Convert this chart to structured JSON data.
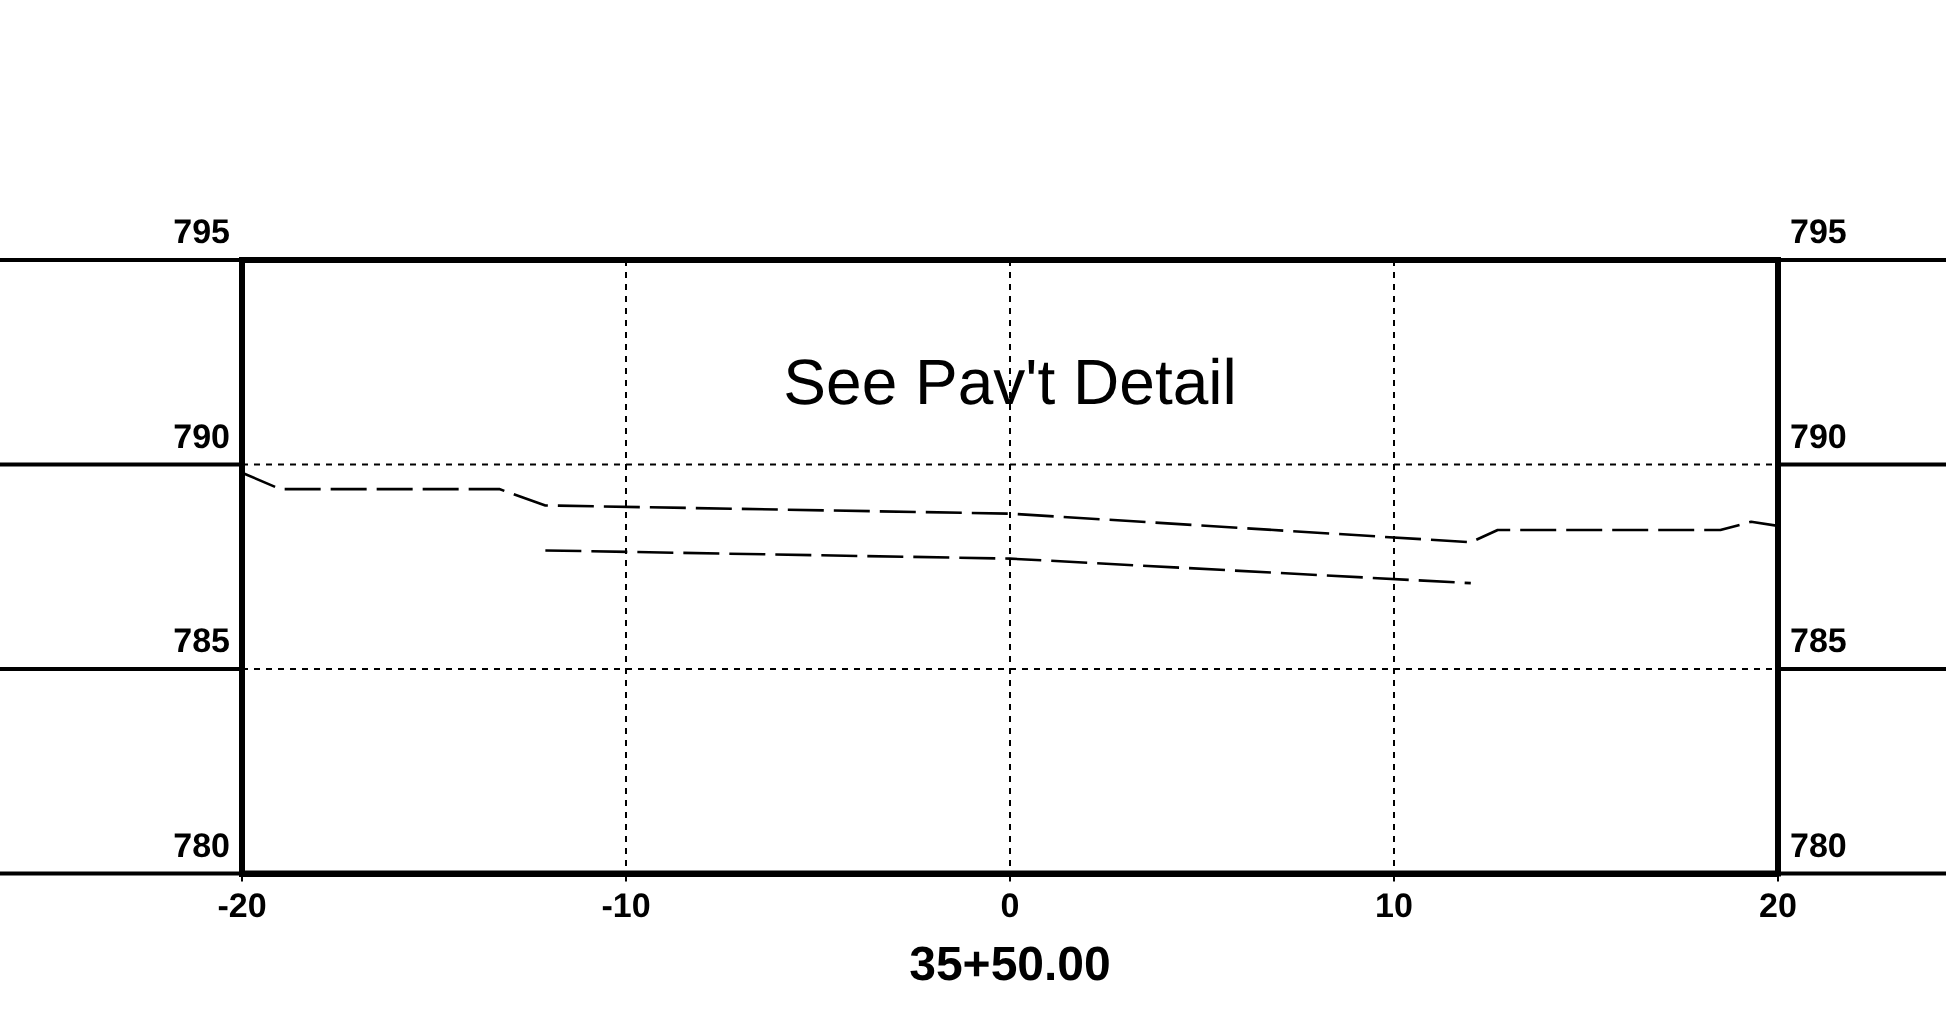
{
  "chart_data": {
    "type": "line",
    "xlabel": "35+50.00",
    "annotations": [
      "See Pav't Detail"
    ],
    "series": [
      {
        "color": "#000000",
        "x": [
          -20,
          -19,
          -13.3,
          -12.1,
          0,
          12,
          12.7,
          18.5,
          19.3,
          20
        ],
        "values": [
          789.8,
          789.4,
          789.4,
          789.0,
          788.8,
          788.1,
          788.4,
          788.4,
          788.6,
          788.5
        ]
      },
      {
        "color": "#000000",
        "x": [
          -12.1,
          0,
          12
        ],
        "values": [
          787.9,
          787.7,
          787.1
        ]
      }
    ],
    "xlim": [
      -20,
      20
    ],
    "xticks": [
      -20,
      -10,
      0,
      10,
      20
    ],
    "ylim": [
      780,
      795
    ],
    "yticks": [
      780,
      785,
      790,
      795
    ],
    "y2lim": [
      780,
      795
    ],
    "y2ticks": [
      780,
      785,
      790,
      795
    ],
    "grid": true,
    "legend": false,
    "marker": "none",
    "line_style": "dashed"
  }
}
